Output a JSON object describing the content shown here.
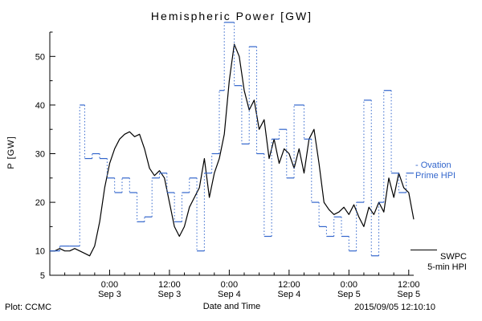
{
  "footer": {
    "left": "Plot: CCMC",
    "right": "2015/09/05 12:10:10"
  },
  "legend": {
    "ovation": {
      "line1": "- Ovation",
      "line2": "Prime HPI",
      "color": "#3366cc"
    },
    "swpc": {
      "line1": "SWPC",
      "line2": "5-min HPI",
      "color": "#000000"
    }
  },
  "chart_data": {
    "type": "line",
    "title": "Hemispheric Power [GW]",
    "xlabel": "Date and Time",
    "ylabel": "P [GW]",
    "ylim": [
      5,
      55
    ],
    "y_ticks": [
      10,
      20,
      30,
      40,
      50
    ],
    "y_min_label": "5",
    "x_range": [
      0,
      73
    ],
    "x_units": "hours from plot start (left edge = Sep 2 ~12:00)",
    "x_ticks": [
      {
        "t": 12,
        "top": "0:00",
        "bottom": "Sep 3"
      },
      {
        "t": 24,
        "top": "12:00",
        "bottom": "Sep 3"
      },
      {
        "t": 36,
        "top": "0:00",
        "bottom": "Sep 4"
      },
      {
        "t": 48,
        "top": "12:00",
        "bottom": "Sep 4"
      },
      {
        "t": 60,
        "top": "0:00",
        "bottom": "Sep 5"
      },
      {
        "t": 72,
        "top": "12:00",
        "bottom": "Sep 5"
      }
    ],
    "series": [
      {
        "name": "SWPC 5-min HPI",
        "color": "#000000",
        "style": "solid-line",
        "x_start": 0,
        "x_step": 1,
        "values": [
          10,
          10,
          10.5,
          10,
          10,
          10.5,
          10,
          9.5,
          9,
          11,
          16,
          23,
          28,
          31,
          33,
          34,
          34.5,
          33.5,
          34,
          31,
          27,
          25.5,
          26.5,
          25,
          20,
          15,
          13,
          15,
          19,
          21,
          23,
          29,
          21,
          26,
          29,
          34,
          45,
          52.5,
          50,
          43,
          39,
          41,
          35,
          37,
          29,
          33,
          28,
          31,
          30,
          27,
          31,
          26,
          33,
          35,
          28,
          20,
          18.5,
          17.5,
          18,
          19,
          17.5,
          19.5,
          17,
          15,
          19,
          17.5,
          20,
          18,
          25,
          21,
          26,
          23,
          22,
          16.5
        ]
      },
      {
        "name": "Ovation Prime HPI",
        "color": "#3366cc",
        "style": "step-dotted-risers",
        "points": [
          [
            0,
            10
          ],
          [
            2,
            11
          ],
          [
            4,
            11
          ],
          [
            6,
            40
          ],
          [
            7,
            29
          ],
          [
            8.5,
            30
          ],
          [
            10,
            29
          ],
          [
            11.5,
            25
          ],
          [
            13,
            22
          ],
          [
            14.5,
            25
          ],
          [
            16,
            22
          ],
          [
            17.5,
            16
          ],
          [
            19,
            17
          ],
          [
            20.5,
            25
          ],
          [
            22,
            26
          ],
          [
            23.5,
            22
          ],
          [
            25,
            16
          ],
          [
            26.5,
            22
          ],
          [
            28,
            25
          ],
          [
            29.5,
            10
          ],
          [
            31,
            26
          ],
          [
            32.5,
            30
          ],
          [
            34,
            43
          ],
          [
            35,
            57
          ],
          [
            37,
            44
          ],
          [
            38.5,
            32
          ],
          [
            40,
            52
          ],
          [
            41.5,
            30
          ],
          [
            43,
            13
          ],
          [
            44.5,
            33
          ],
          [
            46,
            35
          ],
          [
            47.5,
            25
          ],
          [
            49,
            40
          ],
          [
            51,
            33
          ],
          [
            52.5,
            20
          ],
          [
            54,
            15
          ],
          [
            55.5,
            13
          ],
          [
            57,
            17
          ],
          [
            58.5,
            13
          ],
          [
            60,
            10
          ],
          [
            61.5,
            20
          ],
          [
            63,
            41
          ],
          [
            64.5,
            9
          ],
          [
            66,
            20
          ],
          [
            67,
            43
          ],
          [
            68.5,
            26
          ],
          [
            70,
            22
          ],
          [
            71.5,
            26
          ]
        ]
      }
    ]
  }
}
